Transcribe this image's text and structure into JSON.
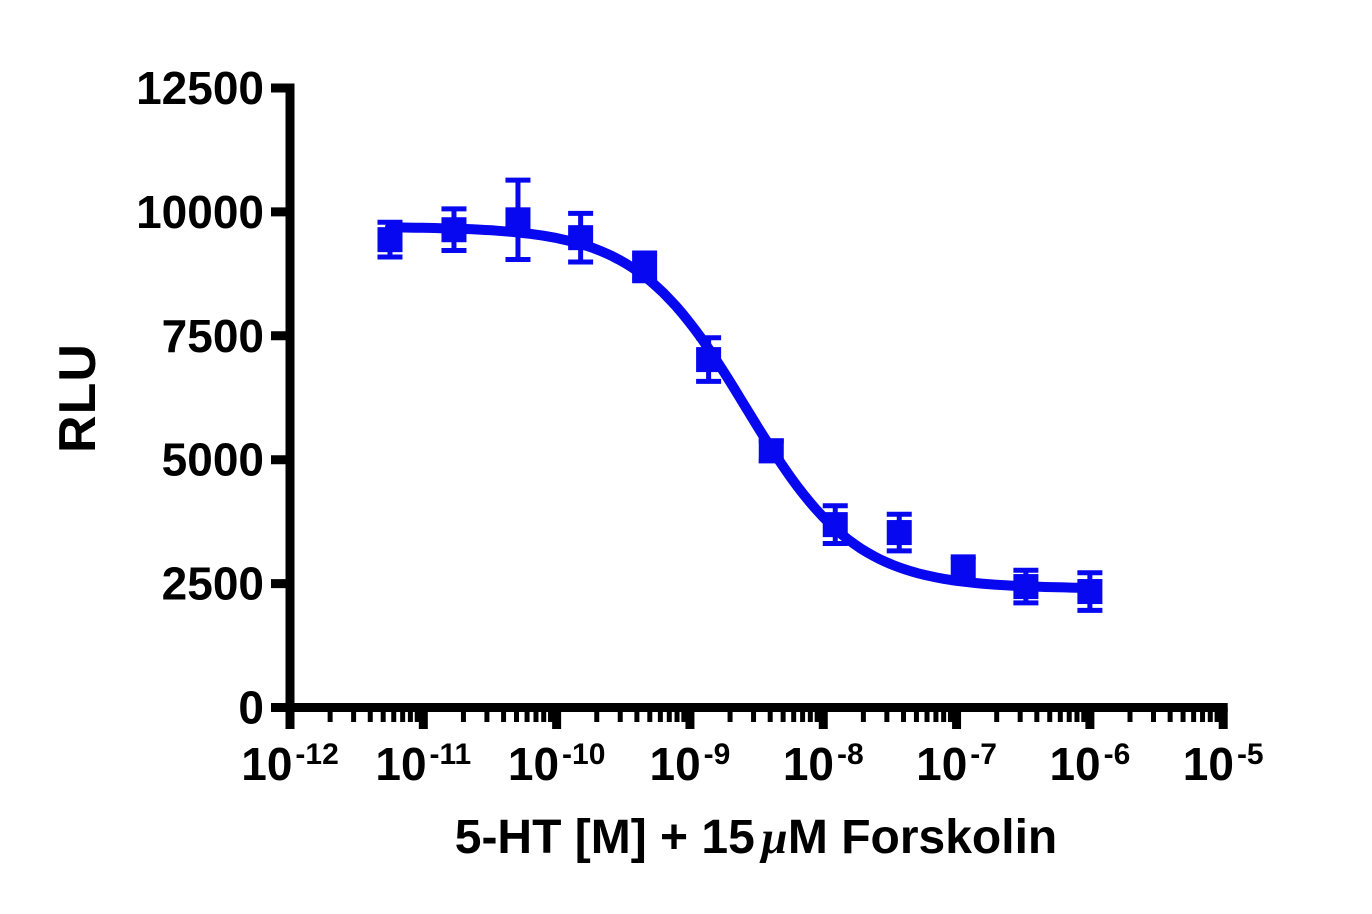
{
  "chart_data": {
    "type": "scatter",
    "subtype": "dose-response-inhibition-curve",
    "title": "",
    "xlabel": "5-HT [M] + 15 µM Forskolin",
    "xlabel_parts": {
      "pre": "5-HT [M] + 15",
      "mu": "µ",
      "post": "M Forskolin"
    },
    "ylabel": "RLU",
    "x_scale": "log10",
    "xlim_log10": [
      -12,
      -5
    ],
    "ylim": [
      0,
      12500
    ],
    "grid": false,
    "legend": false,
    "axis_color": "#000000",
    "series_color": "#0707F0",
    "marker_shape": "square",
    "y_ticks": [
      {
        "value": 0,
        "label": "0"
      },
      {
        "value": 2500,
        "label": "2500"
      },
      {
        "value": 5000,
        "label": "5000"
      },
      {
        "value": 7500,
        "label": "7500"
      },
      {
        "value": 10000,
        "label": "10000"
      },
      {
        "value": 12500,
        "label": "12500"
      }
    ],
    "x_ticks": [
      {
        "log10": -12,
        "base": "10",
        "exponent": "-12"
      },
      {
        "log10": -11,
        "base": "10",
        "exponent": "-11"
      },
      {
        "log10": -10,
        "base": "10",
        "exponent": "-10"
      },
      {
        "log10": -9,
        "base": "10",
        "exponent": "-9"
      },
      {
        "log10": -8,
        "base": "10",
        "exponent": "-8"
      },
      {
        "log10": -7,
        "base": "10",
        "exponent": "-7"
      },
      {
        "log10": -6,
        "base": "10",
        "exponent": "-6"
      },
      {
        "log10": -5,
        "base": "10",
        "exponent": "-5"
      }
    ],
    "minor_tick_subdivisions": [
      2,
      3,
      4,
      5,
      6,
      7,
      8,
      9
    ],
    "points": [
      {
        "log10_conc": -11.25,
        "rlu": 9440,
        "sd": 350
      },
      {
        "log10_conc": -10.77,
        "rlu": 9640,
        "sd": 420
      },
      {
        "log10_conc": -10.29,
        "rlu": 9840,
        "sd": 800
      },
      {
        "log10_conc": -9.82,
        "rlu": 9480,
        "sd": 490
      },
      {
        "log10_conc": -9.34,
        "rlu": 8890,
        "sd": 280
      },
      {
        "log10_conc": -8.86,
        "rlu": 7020,
        "sd": 440
      },
      {
        "log10_conc": -8.39,
        "rlu": 5180,
        "sd": 200
      },
      {
        "log10_conc": -7.91,
        "rlu": 3690,
        "sd": 380
      },
      {
        "log10_conc": -7.43,
        "rlu": 3530,
        "sd": 370
      },
      {
        "log10_conc": -6.95,
        "rlu": 2780,
        "sd": 260
      },
      {
        "log10_conc": -6.48,
        "rlu": 2440,
        "sd": 330
      },
      {
        "log10_conc": -6.0,
        "rlu": 2340,
        "sd": 380
      }
    ],
    "fit_curve": {
      "model": "four_parameter_logistic",
      "top": 9700,
      "bottom": 2400,
      "log10_ic50": -8.58,
      "hill_slope": 1.05,
      "x_range_log10": [
        -11.25,
        -6.0
      ]
    }
  }
}
